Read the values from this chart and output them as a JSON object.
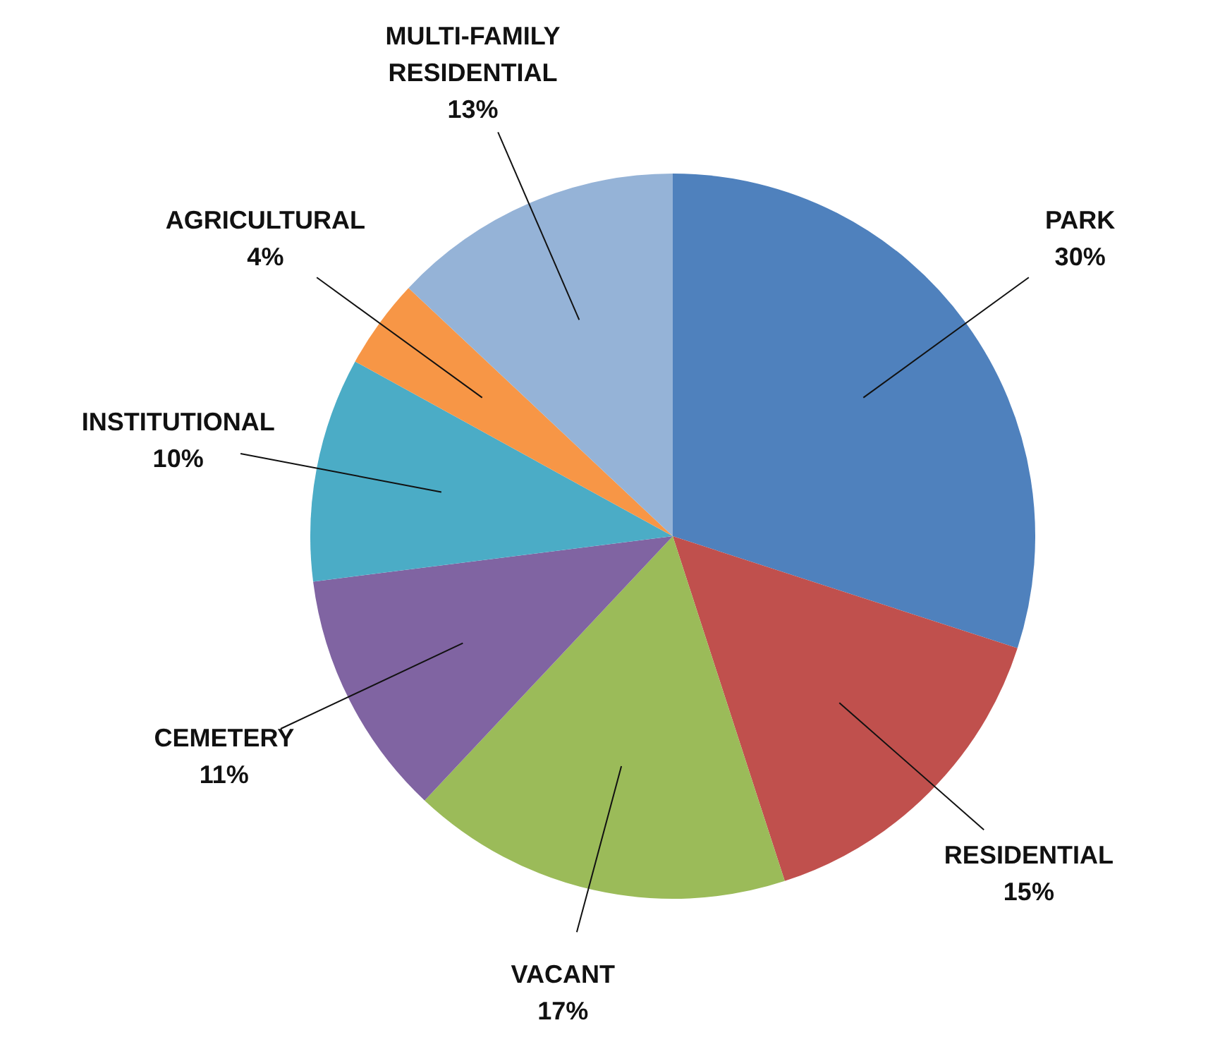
{
  "chart_data": {
    "type": "pie",
    "categories": [
      "PARK",
      "RESIDENTIAL",
      "VACANT",
      "CEMETERY",
      "INSTITUTIONAL",
      "AGRICULTURAL",
      "MULTI-FAMILY RESIDENTIAL"
    ],
    "values": [
      30,
      15,
      17,
      11,
      10,
      4,
      13
    ],
    "colors": [
      "#4f81bd",
      "#c0504d",
      "#9bbb59",
      "#8064a2",
      "#4bacc6",
      "#f79646",
      "#95b3d7"
    ],
    "value_labels": [
      "30%",
      "15%",
      "17%",
      "11%",
      "10%",
      "4%",
      "13%"
    ],
    "legend": false
  }
}
